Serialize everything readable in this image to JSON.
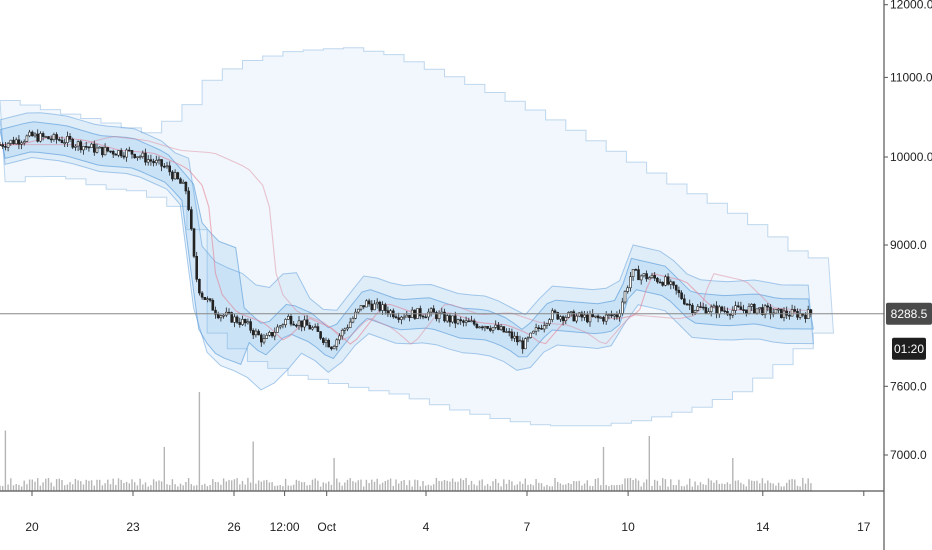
{
  "chart_data": {
    "type": "candlestick",
    "title": "",
    "grid": false,
    "x_axis": {
      "ticks": [
        {
          "label": "20",
          "day": 0
        },
        {
          "label": "23",
          "day": 3
        },
        {
          "label": "26",
          "day": 6
        },
        {
          "label": "12:00",
          "day": 7.5
        },
        {
          "label": "Oct",
          "day": 8.75
        },
        {
          "label": "4",
          "day": 11.7
        },
        {
          "label": "7",
          "day": 14.7
        },
        {
          "label": "10",
          "day": 17.7
        },
        {
          "label": "14",
          "day": 21.7
        },
        {
          "label": "17",
          "day": 24.7
        }
      ],
      "range_days": [
        -0.95,
        25.3
      ]
    },
    "y_axis": {
      "scale": "log",
      "ticks": [
        12000,
        11000,
        10000,
        9000,
        7600,
        7000
      ],
      "tick_labels": [
        "12000.0",
        "11000.0",
        "10000.0",
        "9000.0",
        "7600.0",
        "7000.0"
      ],
      "ylim": [
        7000,
        12300
      ]
    },
    "last_price": {
      "value": 8288.5,
      "label": "8288.5",
      "countdown": "01:20"
    },
    "price_path": [
      {
        "day": -0.95,
        "price": 10150
      },
      {
        "day": 0.0,
        "price": 10250
      },
      {
        "day": 1.0,
        "price": 10200
      },
      {
        "day": 2.0,
        "price": 10080
      },
      {
        "day": 3.0,
        "price": 10050
      },
      {
        "day": 4.0,
        "price": 9870
      },
      {
        "day": 4.6,
        "price": 9600
      },
      {
        "day": 4.85,
        "price": 8700
      },
      {
        "day": 5.0,
        "price": 8500
      },
      {
        "day": 5.5,
        "price": 8300
      },
      {
        "day": 6.3,
        "price": 8200
      },
      {
        "day": 6.9,
        "price": 8020
      },
      {
        "day": 7.6,
        "price": 8250
      },
      {
        "day": 8.3,
        "price": 8150
      },
      {
        "day": 8.9,
        "price": 7980
      },
      {
        "day": 9.9,
        "price": 8400
      },
      {
        "day": 10.9,
        "price": 8280
      },
      {
        "day": 11.8,
        "price": 8300
      },
      {
        "day": 12.7,
        "price": 8200
      },
      {
        "day": 13.5,
        "price": 8180
      },
      {
        "day": 14.1,
        "price": 8100
      },
      {
        "day": 14.6,
        "price": 7980
      },
      {
        "day": 15.4,
        "price": 8280
      },
      {
        "day": 16.8,
        "price": 8240
      },
      {
        "day": 17.4,
        "price": 8280
      },
      {
        "day": 17.8,
        "price": 8700
      },
      {
        "day": 18.8,
        "price": 8620
      },
      {
        "day": 19.6,
        "price": 8350
      },
      {
        "day": 20.6,
        "price": 8320
      },
      {
        "day": 21.5,
        "price": 8340
      },
      {
        "day": 22.2,
        "price": 8290
      },
      {
        "day": 23.2,
        "price": 8288.5
      }
    ],
    "outer_band_upper": [
      {
        "day": -0.95,
        "price": 10700
      },
      {
        "day": 0.5,
        "price": 10560
      },
      {
        "day": 2.0,
        "price": 10420
      },
      {
        "day": 3.4,
        "price": 10280
      },
      {
        "day": 4.6,
        "price": 10700
      },
      {
        "day": 5.0,
        "price": 10950
      },
      {
        "day": 6.0,
        "price": 11200
      },
      {
        "day": 7.5,
        "price": 11350
      },
      {
        "day": 9.2,
        "price": 11400
      },
      {
        "day": 10.5,
        "price": 11300
      },
      {
        "day": 11.7,
        "price": 11100
      },
      {
        "day": 13.2,
        "price": 10850
      },
      {
        "day": 14.8,
        "price": 10550
      },
      {
        "day": 16.2,
        "price": 10250
      },
      {
        "day": 17.6,
        "price": 9950
      },
      {
        "day": 19.0,
        "price": 9650
      },
      {
        "day": 20.4,
        "price": 9400
      },
      {
        "day": 21.6,
        "price": 9150
      },
      {
        "day": 22.6,
        "price": 8900
      },
      {
        "day": 23.2,
        "price": 8850
      }
    ],
    "outer_band_lower": [
      {
        "day": 4.6,
        "price": 8700
      },
      {
        "day": 5.2,
        "price": 8100
      },
      {
        "day": 6.2,
        "price": 7850
      },
      {
        "day": 7.6,
        "price": 7700
      },
      {
        "day": 9.2,
        "price": 7600
      },
      {
        "day": 10.8,
        "price": 7520
      },
      {
        "day": 12.2,
        "price": 7400
      },
      {
        "day": 13.8,
        "price": 7300
      },
      {
        "day": 15.0,
        "price": 7250
      },
      {
        "day": 16.6,
        "price": 7250
      },
      {
        "day": 18.0,
        "price": 7300
      },
      {
        "day": 19.5,
        "price": 7400
      },
      {
        "day": 20.8,
        "price": 7550
      },
      {
        "day": 22.0,
        "price": 7800
      },
      {
        "day": 23.2,
        "price": 8100
      }
    ],
    "volume": {
      "unit": "relative",
      "spikes": [
        {
          "day": -0.8,
          "vol": 0.55
        },
        {
          "day": 3.9,
          "vol": 0.4
        },
        {
          "day": 4.95,
          "vol": 0.9
        },
        {
          "day": 6.6,
          "vol": 0.45
        },
        {
          "day": 9.0,
          "vol": 0.3
        },
        {
          "day": 17.0,
          "vol": 0.4
        },
        {
          "day": 18.3,
          "vol": 0.5
        },
        {
          "day": 20.8,
          "vol": 0.3
        }
      ]
    }
  }
}
